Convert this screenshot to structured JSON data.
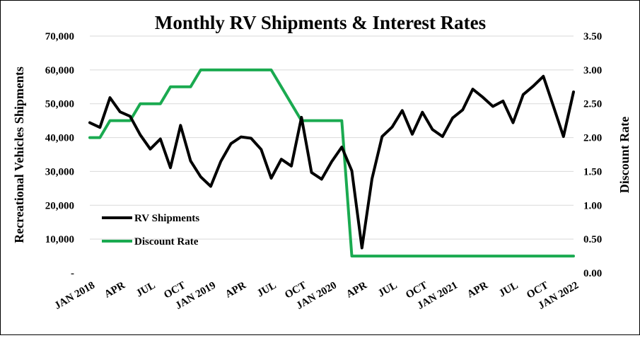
{
  "chart_data": {
    "type": "line",
    "title": "Monthly RV Shipments & Interest Rates",
    "ylabel": "Recreational Vehicles Shipments",
    "y2label": "Discount Rate",
    "ylim": [
      0,
      70000
    ],
    "y2lim": [
      0,
      3.5
    ],
    "grid": true,
    "legend_position": "lower-left",
    "x_tick_labels": [
      "JAN 2018",
      "APR",
      "JUL",
      "OCT",
      "JAN 2019",
      "APR",
      "JUL",
      "OCT",
      "JAN 2020",
      "APR",
      "JUL",
      "OCT",
      "JAN 2021",
      "APR",
      "JUL",
      "OCT",
      "JAN 2022"
    ],
    "y_tick_labels": [
      "-",
      "10,000",
      "20,000",
      "30,000",
      "40,000",
      "50,000",
      "60,000",
      "70,000"
    ],
    "y2_tick_labels": [
      "0.00",
      "0.50",
      "1.00",
      "1.50",
      "2.00",
      "2.50",
      "3.00",
      "3.50"
    ],
    "x": [
      "2018-01",
      "2018-02",
      "2018-03",
      "2018-04",
      "2018-05",
      "2018-06",
      "2018-07",
      "2018-08",
      "2018-09",
      "2018-10",
      "2018-11",
      "2018-12",
      "2019-01",
      "2019-02",
      "2019-03",
      "2019-04",
      "2019-05",
      "2019-06",
      "2019-07",
      "2019-08",
      "2019-09",
      "2019-10",
      "2019-11",
      "2019-12",
      "2020-01",
      "2020-02",
      "2020-03",
      "2020-04",
      "2020-05",
      "2020-06",
      "2020-07",
      "2020-08",
      "2020-09",
      "2020-10",
      "2020-11",
      "2020-12",
      "2021-01",
      "2021-02",
      "2021-03",
      "2021-04",
      "2021-05",
      "2021-06",
      "2021-07",
      "2021-08",
      "2021-09",
      "2021-10",
      "2021-11",
      "2021-12",
      "2022-01"
    ],
    "series": [
      {
        "name": "RV Shipments",
        "axis": "left",
        "color": "#000000",
        "values": [
          44400,
          43000,
          51800,
          47600,
          46300,
          40800,
          36600,
          39600,
          31100,
          43600,
          33100,
          28400,
          25600,
          33000,
          38200,
          40200,
          39800,
          36500,
          28000,
          33600,
          31600,
          46000,
          29700,
          27700,
          32900,
          37200,
          30200,
          7400,
          27800,
          40300,
          43100,
          48000,
          41000,
          47500,
          42400,
          40300,
          45800,
          48200,
          54300,
          51900,
          49200,
          50800,
          44400,
          52700,
          55200,
          58100,
          49300,
          40300,
          53500
        ]
      },
      {
        "name": "Discount Rate",
        "axis": "right",
        "color": "#1aaa50",
        "values": [
          2.0,
          2.0,
          2.25,
          2.25,
          2.25,
          2.5,
          2.5,
          2.5,
          2.75,
          2.75,
          2.75,
          3.0,
          3.0,
          3.0,
          3.0,
          3.0,
          3.0,
          3.0,
          3.0,
          2.75,
          2.5,
          2.25,
          2.25,
          2.25,
          2.25,
          2.25,
          0.25,
          0.25,
          0.25,
          0.25,
          0.25,
          0.25,
          0.25,
          0.25,
          0.25,
          0.25,
          0.25,
          0.25,
          0.25,
          0.25,
          0.25,
          0.25,
          0.25,
          0.25,
          0.25,
          0.25,
          0.25,
          0.25,
          0.25
        ]
      }
    ]
  }
}
